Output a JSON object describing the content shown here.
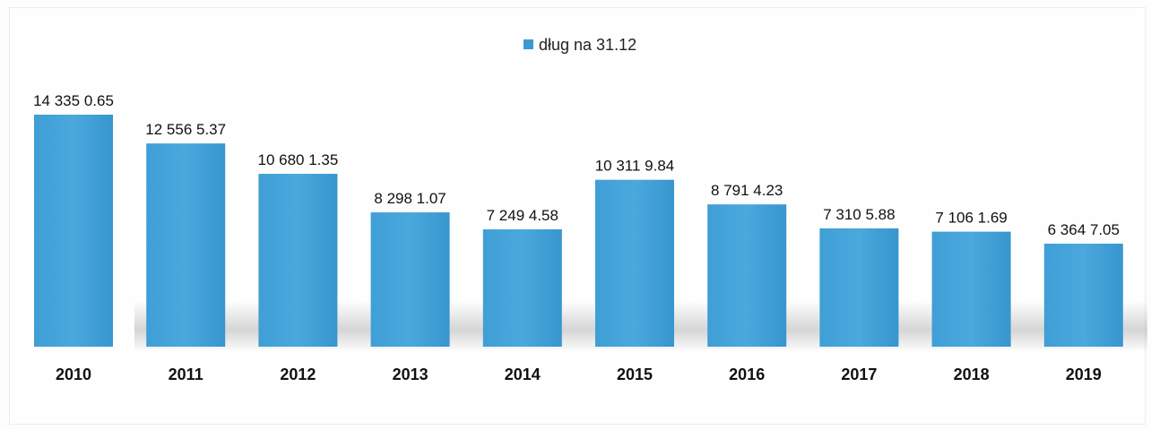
{
  "chart_data": {
    "type": "bar",
    "title": "",
    "xlabel": "",
    "ylabel": "",
    "categories": [
      "2010",
      "2011",
      "2012",
      "2013",
      "2014",
      "2015",
      "2016",
      "2017",
      "2018",
      "2019"
    ],
    "series": [
      {
        "name": "dług na 31.12",
        "values": [
          143350.65,
          125565.37,
          106801.35,
          82981.07,
          72494.58,
          103119.84,
          87914.23,
          73105.88,
          71061.69,
          63647.05
        ],
        "labels": [
          "14 335 0.65",
          "12 556 5.37",
          "10 680 1.35",
          "8 298 1.07",
          "7 249 4.58",
          "10 311 9.84",
          "8 791 4.23",
          "7 310 5.88",
          "7 106 1.69",
          "6 364 7.05"
        ],
        "color": "#3a9bd3"
      }
    ],
    "ylim": [
      0,
      143350.65
    ],
    "grid": false,
    "legend": "top-center"
  }
}
